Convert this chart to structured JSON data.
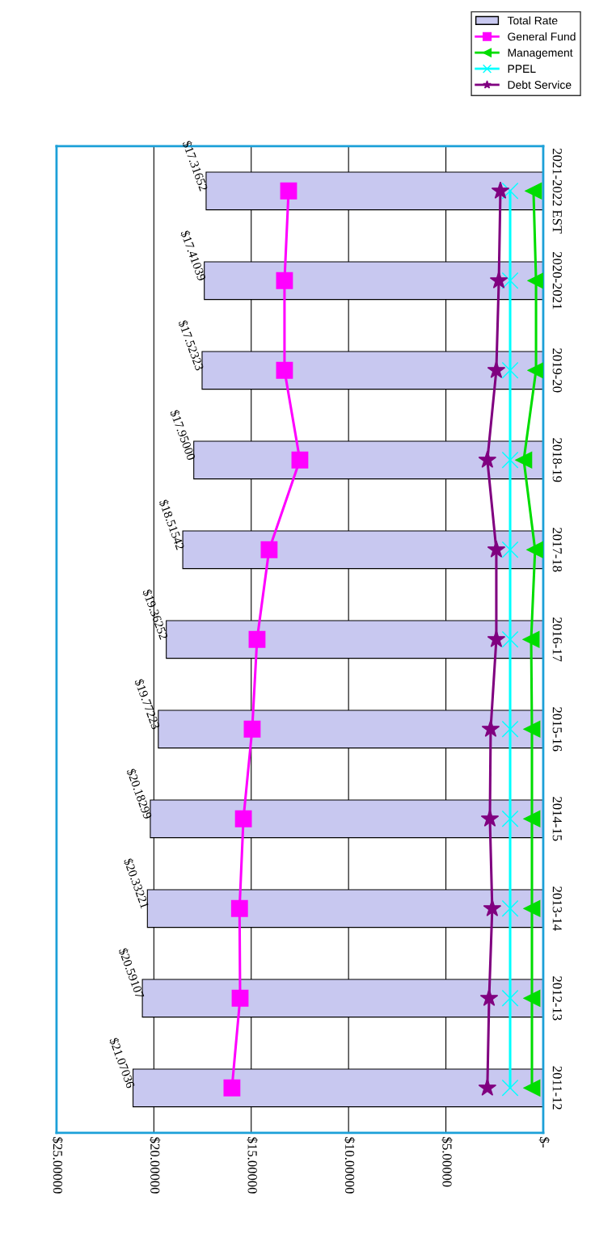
{
  "chart_data": {
    "type": "bar",
    "orientation": "horizontal",
    "categories": [
      "2021-2022 EST",
      "2020-2021",
      "2019-20",
      "2018-19",
      "2017-18",
      "2016-17",
      "2015-16",
      "2014-15",
      "2013-14",
      "2012-13",
      "2011-12"
    ],
    "series": [
      {
        "name": "Total Rate",
        "color": "#c8c8f0",
        "values": [
          17.31652,
          17.41039,
          17.52323,
          17.95,
          18.51542,
          19.36252,
          19.77223,
          20.18299,
          20.33221,
          20.59107,
          21.07036
        ],
        "value_labels": [
          "$17.31652",
          "$17.41039",
          "$17.52323",
          "$17.95000",
          "$18.51542",
          "$19.36252",
          "$19.77223",
          "$20.18299",
          "$20.33221",
          "$20.59107",
          "$21.07036"
        ]
      },
      {
        "name": "General Fund",
        "type": "line",
        "color": "#ff00ff",
        "marker": "square",
        "values": [
          13.08,
          13.29,
          13.29,
          12.5,
          14.08,
          14.7,
          14.95,
          15.4,
          15.6,
          15.57,
          15.99
        ]
      },
      {
        "name": "Management",
        "type": "line",
        "color": "#00dd00",
        "marker": "triangle",
        "values": [
          0.5,
          0.37,
          0.37,
          1.0,
          0.42,
          0.62,
          0.58,
          0.58,
          0.58,
          0.58,
          0.58
        ]
      },
      {
        "name": "PPEL",
        "type": "line",
        "color": "#00ffff",
        "marker": "cross",
        "values": [
          1.7,
          1.7,
          1.7,
          1.7,
          1.7,
          1.7,
          1.7,
          1.7,
          1.7,
          1.7,
          1.7
        ]
      },
      {
        "name": "Debt Service",
        "type": "line",
        "color": "#800080",
        "marker": "star",
        "values": [
          2.2,
          2.28,
          2.41,
          2.87,
          2.41,
          2.41,
          2.7,
          2.74,
          2.62,
          2.78,
          2.87
        ]
      }
    ],
    "xlim": [
      25,
      0
    ],
    "xticks": [
      {
        "value": 25,
        "label": "$25.00000"
      },
      {
        "value": 20,
        "label": "$20.00000"
      },
      {
        "value": 15,
        "label": "$15.00000"
      },
      {
        "value": 10,
        "label": "$10.00000"
      },
      {
        "value": 5,
        "label": "$5.00000"
      },
      {
        "value": 0,
        "label": "$-"
      }
    ],
    "grid": "x",
    "legend": "top right"
  }
}
